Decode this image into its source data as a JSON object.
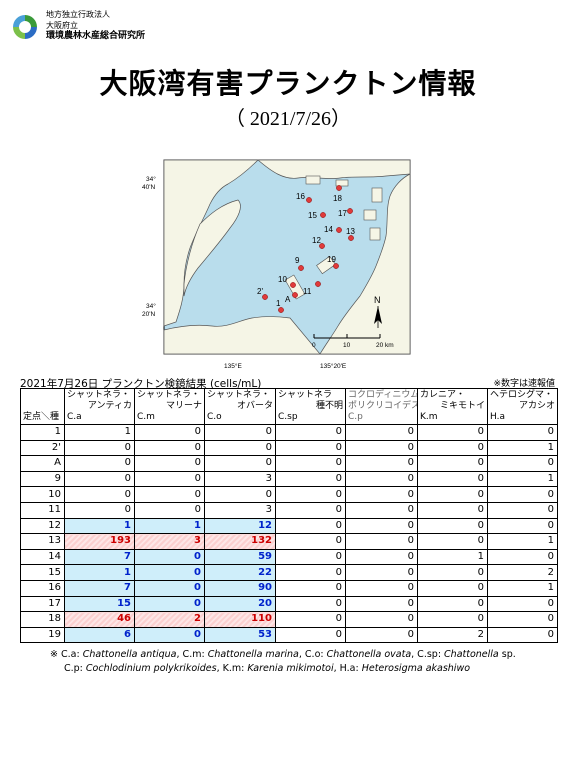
{
  "org": {
    "line1": "地方独立行政法人",
    "line2": "大阪府立",
    "line3": "環境農林水産総合研究所"
  },
  "title": "大阪湾有害プランクトン情報",
  "date": "（ 2021/7/26）",
  "map": {
    "lat_top": "34°\n40'N",
    "lat_bottom": "34°\n20'N",
    "lon_left": "135°E",
    "lon_right": "135°20'E",
    "north": "N",
    "scale": [
      "0",
      "10",
      "20 km"
    ],
    "stations": [
      "16",
      "18",
      "15",
      "17",
      "14",
      "13",
      "12",
      "9",
      "19",
      "10",
      "11",
      "2'",
      "A",
      "1"
    ],
    "colors": {
      "land": "#f5f5e6",
      "sea": "#b9ddec",
      "dot": "#e03a3a"
    }
  },
  "results": {
    "caption": "2021年7月26日  プランクトン検鏡結果 (cells/mL)",
    "note": "※数字は速報値",
    "station_header": "定点＼種",
    "columns": [
      {
        "n1": "シャットネラ・",
        "n2": "アンティカ",
        "code": "C.a"
      },
      {
        "n1": "シャットネラ・",
        "n2": "マリーナ",
        "code": "C.m"
      },
      {
        "n1": "シャットネラ・",
        "n2": "オバータ",
        "code": "C.o"
      },
      {
        "n1": "シャットネラ",
        "n2": "種不明",
        "code": "C.sp"
      },
      {
        "n1": "コクロディニウム・",
        "n2": "ポリクリコイデス",
        "code": "C.p"
      },
      {
        "n1": "カレニア・",
        "n2": "ミキモトイ",
        "code": "K.m"
      },
      {
        "n1": "ヘテロシグマ・",
        "n2": "アカシオ",
        "code": "H.a"
      }
    ],
    "rows": [
      {
        "st": "1",
        "v": [
          "1",
          "0",
          "0",
          "0",
          "0",
          "0",
          "0"
        ]
      },
      {
        "st": "2'",
        "v": [
          "0",
          "0",
          "0",
          "0",
          "0",
          "0",
          "1"
        ]
      },
      {
        "st": "A",
        "v": [
          "0",
          "0",
          "0",
          "0",
          "0",
          "0",
          "0"
        ]
      },
      {
        "st": "9",
        "v": [
          "0",
          "0",
          "3",
          "0",
          "0",
          "0",
          "1"
        ]
      },
      {
        "st": "10",
        "v": [
          "0",
          "0",
          "0",
          "0",
          "0",
          "0",
          "0"
        ]
      },
      {
        "st": "11",
        "v": [
          "0",
          "0",
          "3",
          "0",
          "0",
          "0",
          "0"
        ]
      },
      {
        "st": "12",
        "v": [
          "1",
          "1",
          "12",
          "0",
          "0",
          "0",
          "0"
        ]
      },
      {
        "st": "13",
        "v": [
          "193",
          "3",
          "132",
          "0",
          "0",
          "0",
          "1"
        ]
      },
      {
        "st": "14",
        "v": [
          "7",
          "0",
          "59",
          "0",
          "0",
          "1",
          "0"
        ]
      },
      {
        "st": "15",
        "v": [
          "1",
          "0",
          "22",
          "0",
          "0",
          "0",
          "2"
        ]
      },
      {
        "st": "16",
        "v": [
          "7",
          "0",
          "90",
          "0",
          "0",
          "0",
          "1"
        ]
      },
      {
        "st": "17",
        "v": [
          "15",
          "0",
          "20",
          "0",
          "0",
          "0",
          "0"
        ]
      },
      {
        "st": "18",
        "v": [
          "46",
          "2",
          "110",
          "0",
          "0",
          "0",
          "0"
        ]
      },
      {
        "st": "19",
        "v": [
          "6",
          "0",
          "53",
          "0",
          "0",
          "2",
          "0"
        ]
      }
    ]
  },
  "footnote": {
    "mark": "※",
    "line1": [
      {
        "t": "C.a: ",
        "i": false
      },
      {
        "t": "Chattonella antiqua",
        "i": true
      },
      {
        "t": ", C.m: ",
        "i": false
      },
      {
        "t": "Chattonella marina",
        "i": true
      },
      {
        "t": ", C.o: ",
        "i": false
      },
      {
        "t": "Chattonella ovata",
        "i": true
      },
      {
        "t": ", C.sp: ",
        "i": false
      },
      {
        "t": "Chattonella",
        "i": true
      },
      {
        "t": " sp.",
        "i": false
      }
    ],
    "line2": [
      {
        "t": "C.p: ",
        "i": false
      },
      {
        "t": "Cochlodinium polykrikoides",
        "i": true
      },
      {
        "t": ",  K.m: ",
        "i": false
      },
      {
        "t": "Karenia mikimotoi",
        "i": true
      },
      {
        "t": ",  H.a: ",
        "i": false
      },
      {
        "t": "Heterosigma akashiwo",
        "i": true
      }
    ]
  }
}
